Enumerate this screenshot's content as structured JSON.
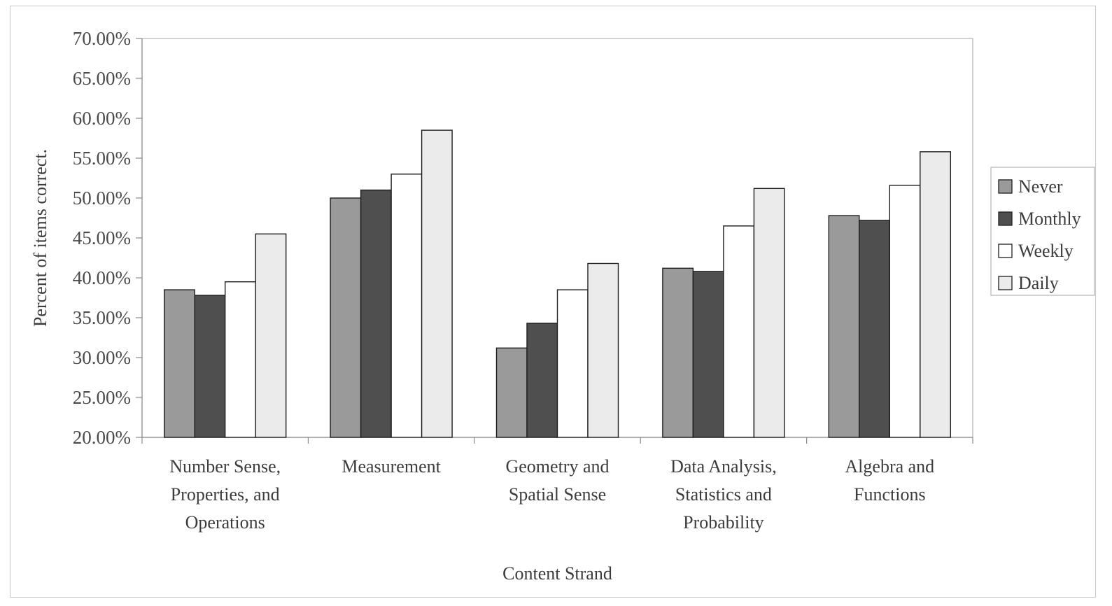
{
  "chart_data": {
    "type": "bar",
    "title": "",
    "xlabel": "Content Strand",
    "ylabel": "Percent of items correct.",
    "ylim": [
      0.2,
      0.7
    ],
    "ytick_step": 0.05,
    "ytick_labels": [
      "20.00%",
      "25.00%",
      "30.00%",
      "35.00%",
      "40.00%",
      "45.00%",
      "50.00%",
      "55.00%",
      "60.00%",
      "65.00%",
      "70.00%"
    ],
    "categories": [
      [
        "Number Sense,",
        "Properties, and",
        "Operations"
      ],
      [
        "Measurement"
      ],
      [
        "Geometry and",
        "Spatial Sense"
      ],
      [
        "Data Analysis,",
        "Statistics and",
        "Probability"
      ],
      [
        "Algebra and",
        "Functions"
      ]
    ],
    "series": [
      {
        "name": "Never",
        "color": "#9a9a9a",
        "values": [
          0.385,
          0.5,
          0.312,
          0.412,
          0.478
        ]
      },
      {
        "name": "Monthly",
        "color": "#4f4f4f",
        "values": [
          0.378,
          0.51,
          0.343,
          0.408,
          0.472
        ]
      },
      {
        "name": "Weekly",
        "color": "#ffffff",
        "values": [
          0.395,
          0.53,
          0.385,
          0.465,
          0.516
        ]
      },
      {
        "name": "Daily",
        "color": "#ebebeb",
        "values": [
          0.455,
          0.585,
          0.418,
          0.512,
          0.558
        ]
      }
    ],
    "grid": false,
    "legend_position": "right"
  }
}
